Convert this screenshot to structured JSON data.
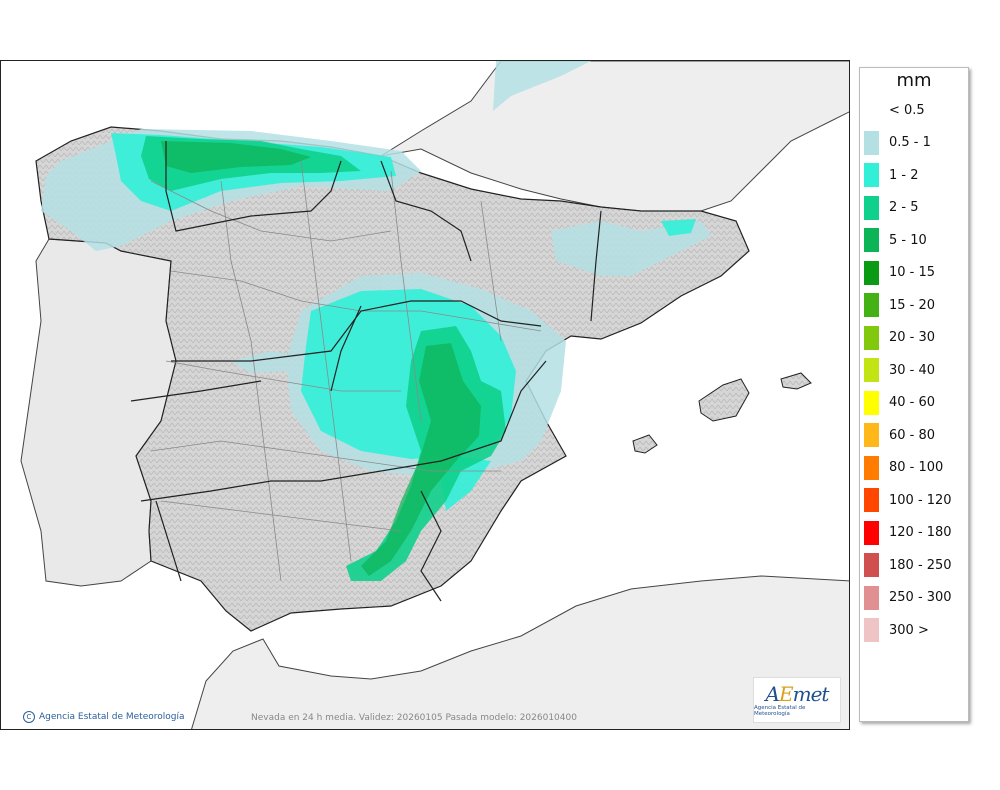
{
  "map": {
    "caption": "Nevada en 24 h media. Validez: 20260105 Pasada modelo: 2026010400",
    "credit": "Agencia Estatal de Meteorología",
    "logo_text": "AEmet",
    "logo_subtext": "Agencia Estatal de Meteorología"
  },
  "legend": {
    "title": "mm",
    "items": [
      {
        "label": "< 0.5",
        "color": "#ffffff"
      },
      {
        "label": "0.5 - 1",
        "color": "#b4e0e4"
      },
      {
        "label": "1 - 2",
        "color": "#32f0d8"
      },
      {
        "label": "2 - 5",
        "color": "#0fd08c"
      },
      {
        "label": "5 - 10",
        "color": "#0db456"
      },
      {
        "label": "10 - 15",
        "color": "#0b9a14"
      },
      {
        "label": "15 - 20",
        "color": "#44b214"
      },
      {
        "label": "20 - 30",
        "color": "#82c90e"
      },
      {
        "label": "30 - 40",
        "color": "#c2e414"
      },
      {
        "label": "40 - 60",
        "color": "#ffff00"
      },
      {
        "label": "60 - 80",
        "color": "#ffb71a"
      },
      {
        "label": "80 - 100",
        "color": "#ff7c00"
      },
      {
        "label": "100 - 120",
        "color": "#ff4700"
      },
      {
        "label": "120 - 180",
        "color": "#ff0000"
      },
      {
        "label": "180 - 250",
        "color": "#d04f4f"
      },
      {
        "label": "250 - 300",
        "color": "#e09090"
      },
      {
        "label": "300 >",
        "color": "#efc4c4"
      }
    ]
  }
}
